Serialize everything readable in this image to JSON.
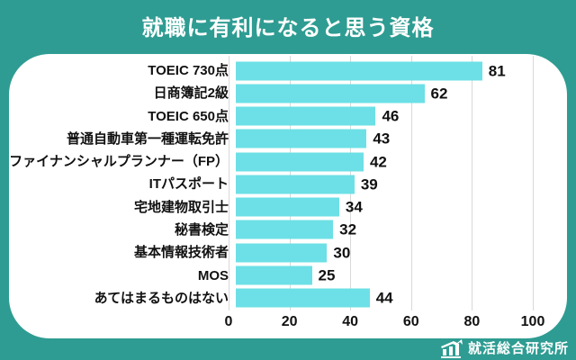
{
  "page": {
    "title": "就職に有利になると思う資格"
  },
  "colors": {
    "background_teal": "#2e9c92",
    "card_white": "#ffffff",
    "bar_cyan": "#6ce0e6",
    "gridline_gray": "#d9d9d9",
    "text_black": "#111111",
    "text_white": "#ffffff"
  },
  "chart_data": {
    "type": "bar",
    "orientation": "horizontal",
    "title": "就職に有利になると思う資格",
    "categories": [
      "TOEIC 730点",
      "日商簿記2級",
      "TOEIC 650点",
      "普通自動車第一種運転免許",
      "ファイナンシャルプランナー（FP）",
      "ITパスポート",
      "宅地建物取引士",
      "秘書検定",
      "基本情報技術者",
      "MOS",
      "あてはまるものはない"
    ],
    "values": [
      81,
      62,
      46,
      43,
      42,
      39,
      34,
      32,
      30,
      25,
      44
    ],
    "xlabel": "",
    "ylabel": "",
    "xlim": [
      0,
      100
    ],
    "x_ticks": [
      0,
      20,
      40,
      60,
      80,
      100
    ],
    "grid": "vertical-only",
    "value_labels": "outside-end",
    "bar_color": "#6ce0e6",
    "legend": "none"
  },
  "footer": {
    "brand": "就活総合研究所",
    "icon": "bar-chart-rising-icon"
  }
}
